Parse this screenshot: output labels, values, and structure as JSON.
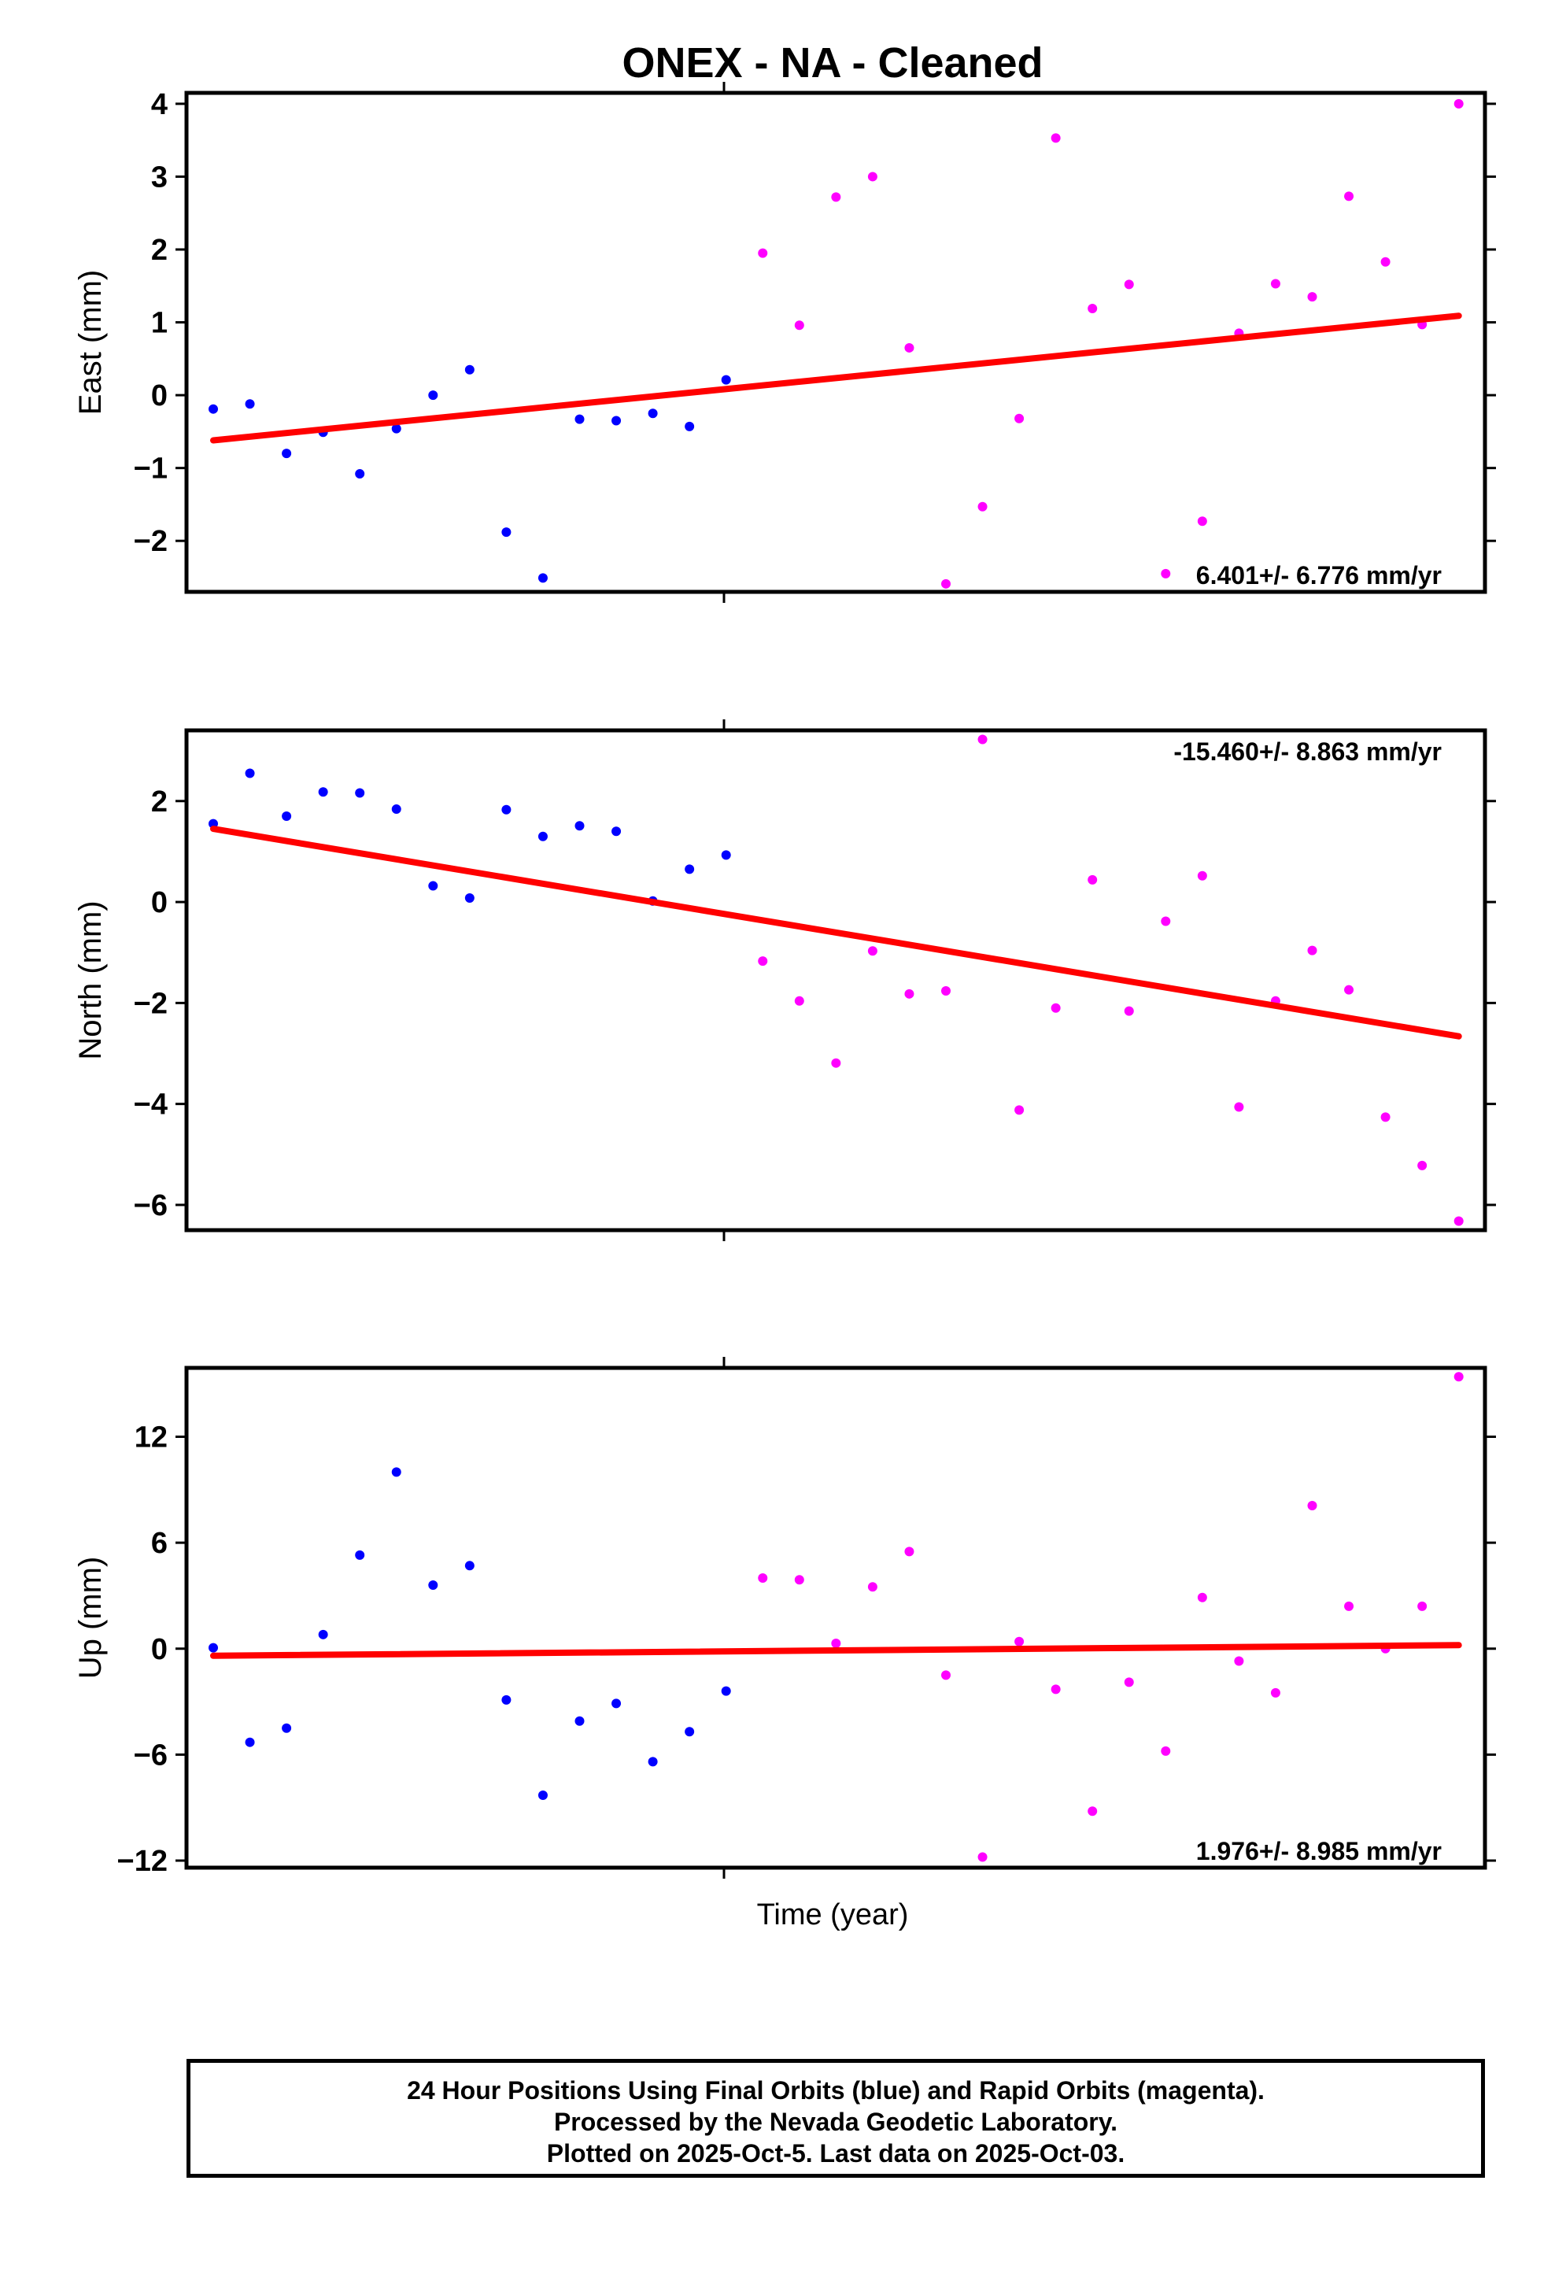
{
  "title": "ONEX  - NA - Cleaned",
  "xlabel": "Time (year)",
  "footer": {
    "line1": "24 Hour Positions Using Final Orbits (blue) and Rapid Orbits (magenta).",
    "line2": "Processed by the Nevada Geodetic Laboratory.",
    "line3": "Plotted on 2025-Oct-5. Last data on 2025-Oct-03."
  },
  "colors": {
    "final": "#0000ff",
    "rapid": "#ff00ff",
    "trend": "#ff0000",
    "frame": "#000000"
  },
  "chart_data": [
    {
      "type": "scatter",
      "ylabel": "East (mm)",
      "ylim": [
        -2.7,
        4.15
      ],
      "yticks": [
        -2,
        -1,
        0,
        1,
        2,
        3,
        4
      ],
      "rate_label": "6.401+/- 6.776 mm/yr",
      "rate_label_position": "bottom-right",
      "trend": [
        -0.62,
        1.09
      ],
      "series": [
        {
          "name": "Final Orbits",
          "color": "blue",
          "values": [
            -0.19,
            -0.12,
            -0.8,
            -0.51,
            -1.08,
            -0.46,
            0.0,
            0.35,
            -1.88,
            -2.51,
            -0.33,
            -0.35,
            -0.25,
            -0.43,
            0.21
          ]
        },
        {
          "name": "Rapid Orbits",
          "color": "magenta",
          "values": [
            1.95,
            0.96,
            2.72,
            3.0,
            0.65,
            -2.59,
            -1.53,
            -0.32,
            3.53,
            1.19,
            1.52,
            -2.45,
            -1.73,
            0.85,
            1.53,
            1.35,
            2.73,
            1.83,
            0.97,
            4.0
          ]
        }
      ]
    },
    {
      "type": "scatter",
      "ylabel": "North (mm)",
      "ylim": [
        -6.5,
        3.4
      ],
      "yticks": [
        -6,
        -4,
        -2,
        0,
        2
      ],
      "rate_label": "-15.460+/- 8.863 mm/yr",
      "rate_label_position": "top-right",
      "trend": [
        1.45,
        -2.66
      ],
      "series": [
        {
          "name": "Final Orbits",
          "color": "blue",
          "values": [
            1.55,
            2.55,
            1.7,
            2.18,
            2.16,
            1.84,
            0.32,
            0.08,
            1.83,
            1.3,
            1.51,
            1.4,
            0.02,
            0.65,
            0.93
          ]
        },
        {
          "name": "Rapid Orbits",
          "color": "magenta",
          "values": [
            -1.17,
            -1.96,
            -3.19,
            -0.97,
            -1.82,
            -1.76,
            3.22,
            -4.12,
            -2.1,
            0.44,
            -2.16,
            -0.38,
            0.52,
            -4.06,
            -1.96,
            -0.96,
            -1.74,
            -4.26,
            -5.22,
            -6.32
          ]
        }
      ]
    },
    {
      "type": "scatter",
      "ylabel": "Up (mm)",
      "ylim": [
        -12.4,
        15.9
      ],
      "yticks": [
        -12,
        -6,
        0,
        6,
        12
      ],
      "rate_label": "1.976+/- 8.985 mm/yr",
      "rate_label_position": "bottom-right",
      "trend": [
        -0.4,
        0.2
      ],
      "series": [
        {
          "name": "Final Orbits",
          "color": "blue",
          "values": [
            0.05,
            -5.3,
            -4.5,
            0.8,
            5.3,
            10.0,
            3.6,
            4.7,
            -2.9,
            -8.3,
            -4.1,
            -3.1,
            -6.4,
            -4.7,
            -2.4
          ]
        },
        {
          "name": "Rapid Orbits",
          "color": "magenta",
          "values": [
            4.0,
            3.9,
            0.3,
            3.5,
            5.5,
            -1.5,
            -11.8,
            0.4,
            -2.3,
            -9.2,
            -1.9,
            -5.8,
            2.9,
            -0.7,
            -2.5,
            8.1,
            2.4,
            0.0,
            2.4,
            15.4
          ]
        }
      ]
    }
  ]
}
